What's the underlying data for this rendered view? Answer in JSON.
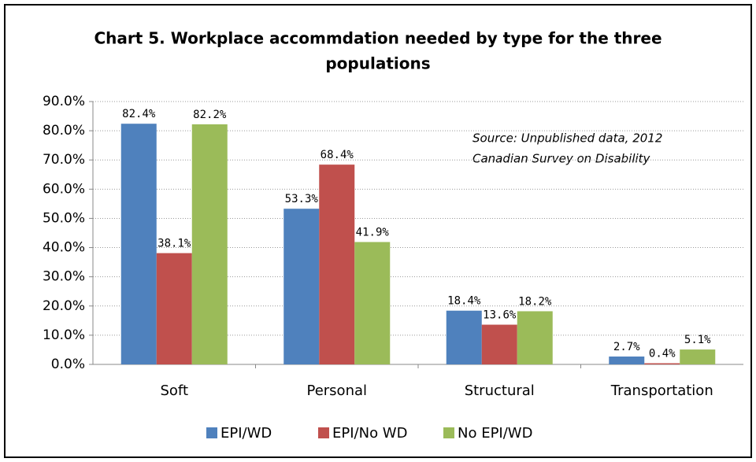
{
  "chart_data": {
    "type": "bar",
    "title": [
      "Chart 5. Workplace accommdation needed by type for the three",
      "populations"
    ],
    "annotation": [
      "Source: Unpublished data, 2012",
      "Canadian Survey on Disability"
    ],
    "categories": [
      "Soft",
      "Personal",
      "Structural",
      "Transportation"
    ],
    "series": [
      {
        "name": "EPI/WD",
        "color": "#4f81bd",
        "values": [
          82.4,
          53.3,
          18.4,
          2.7
        ],
        "value_labels": [
          "82.4%",
          "53.3%",
          "18.4%",
          "2.7%"
        ]
      },
      {
        "name": "EPI/No WD",
        "color": "#c0504d",
        "values": [
          38.1,
          68.4,
          13.6,
          0.4
        ],
        "value_labels": [
          "38.1%",
          "68.4%",
          "13.6%",
          "0.4%"
        ]
      },
      {
        "name": "No EPI/WD",
        "color": "#9bbb59",
        "values": [
          82.2,
          41.9,
          18.2,
          5.1
        ],
        "value_labels": [
          "82.2%",
          "41.9%",
          "18.2%",
          "5.1%"
        ]
      }
    ],
    "ylim": [
      0,
      90
    ],
    "yticks": [
      {
        "value": 0,
        "label": "0.0%"
      },
      {
        "value": 10,
        "label": "10.0%"
      },
      {
        "value": 20,
        "label": "20.0%"
      },
      {
        "value": 30,
        "label": "30.0%"
      },
      {
        "value": 40,
        "label": "40.0%"
      },
      {
        "value": 50,
        "label": "50.0%"
      },
      {
        "value": 60,
        "label": "60.0%"
      },
      {
        "value": 70,
        "label": "70.0%"
      },
      {
        "value": 80,
        "label": "80.0%"
      },
      {
        "value": 90,
        "label": "90.0%"
      }
    ],
    "grid": true,
    "legend": "bottom"
  }
}
